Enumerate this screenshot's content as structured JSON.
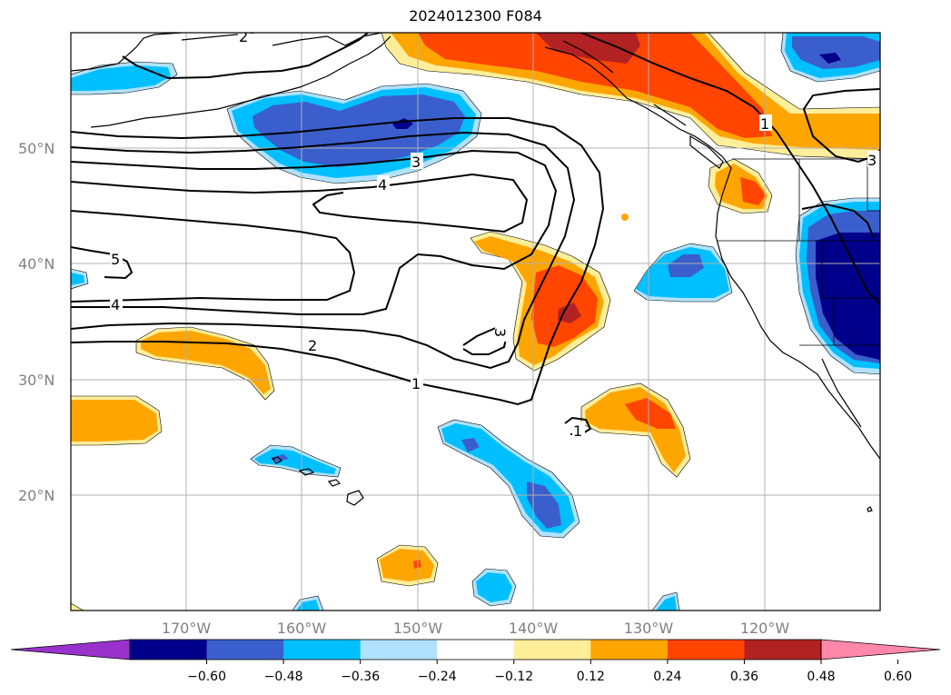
{
  "title": "2024012300 F084",
  "latitude_labels": [
    "50°N",
    "40°N",
    "30°N",
    "20°N"
  ],
  "longitude_labels": [
    "170°W",
    "160°W",
    "150°W",
    "140°W",
    "130°W",
    "120°W"
  ],
  "contour_labels": [
    "2",
    "3",
    "4",
    "5",
    "4",
    "2",
    "1",
    "3",
    "1",
    "1",
    "3"
  ],
  "colorbar": {
    "tick_labels": [
      "−0.60",
      "−0.48",
      "−0.36",
      "−0.24",
      "−0.12",
      "0.12",
      "0.24",
      "0.36",
      "0.48",
      "0.60"
    ],
    "colors": [
      "#9932cc",
      "#00008b",
      "#3a5fcd",
      "#00bfff",
      "#b0e2ff",
      "#ffffff",
      "#ffee99",
      "#ffa500",
      "#ff4500",
      "#b22222",
      "#ff88aa"
    ],
    "extend": "both"
  },
  "shading_colors": {
    "light_blue": "#b0e2ff",
    "blue": "#00bfff",
    "royal": "#3a5fcd",
    "navy": "#00008b",
    "yellow": "#ffee99",
    "orange": "#ffa500",
    "red_orange": "#ff4500",
    "dark_red": "#b22222"
  }
}
